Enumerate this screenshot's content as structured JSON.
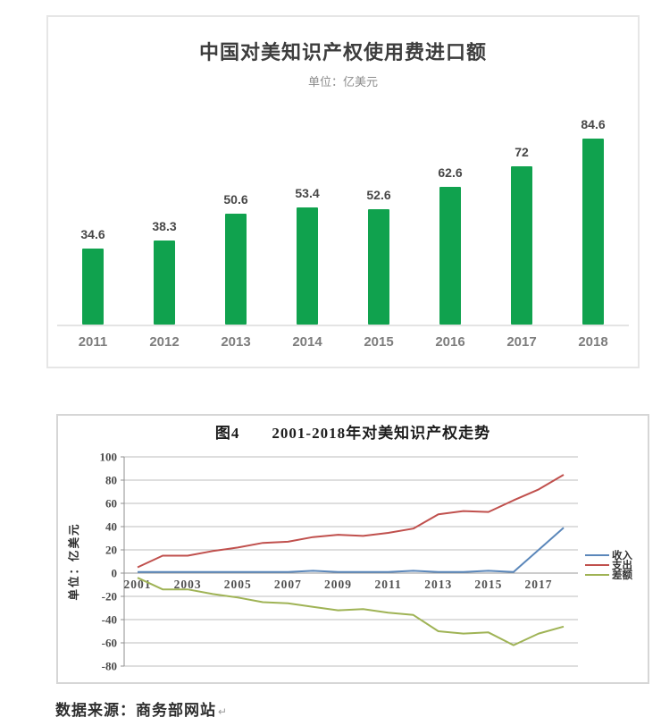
{
  "chart_data": [
    {
      "type": "bar",
      "title": "中国对美知识产权使用费进口额",
      "subtitle": "单位：亿美元",
      "categories": [
        "2011",
        "2012",
        "2013",
        "2014",
        "2015",
        "2016",
        "2017",
        "2018"
      ],
      "values": [
        34.6,
        38.3,
        50.6,
        53.4,
        52.6,
        62.6,
        72,
        84.6
      ],
      "value_labels": [
        "34.6",
        "38.3",
        "50.6",
        "53.4",
        "52.6",
        "62.6",
        "72",
        "84.6"
      ],
      "bar_color": "#10a24e",
      "ylim": [
        0,
        100
      ],
      "grid": false,
      "legend": false
    },
    {
      "type": "line",
      "title": "图4　　2001-2018年对美知识产权走势",
      "ylabel": "单位：亿美元",
      "x": [
        2001,
        2002,
        2003,
        2004,
        2005,
        2006,
        2007,
        2008,
        2009,
        2010,
        2011,
        2012,
        2013,
        2014,
        2015,
        2016,
        2017,
        2018
      ],
      "x_tick_labels": [
        "2001",
        "2003",
        "2005",
        "2007",
        "2009",
        "2011",
        "2013",
        "2015",
        "2017"
      ],
      "y_ticks": [
        100,
        80,
        60,
        40,
        20,
        0,
        -20,
        -40,
        -60,
        -80
      ],
      "ylim": [
        -80,
        100
      ],
      "grid": true,
      "legend_position": "right",
      "series": [
        {
          "name": "收入",
          "color": "#5b87ba",
          "values": [
            1,
            1,
            1,
            1,
            1,
            1,
            1,
            2,
            1,
            1,
            1,
            2,
            1,
            1,
            2,
            1,
            20,
            39
          ]
        },
        {
          "name": "支出",
          "color": "#c0504d",
          "values": [
            5,
            15,
            15,
            19,
            22,
            26,
            27,
            31,
            33,
            32,
            34.6,
            38.3,
            50.6,
            53.4,
            52.6,
            62.6,
            72,
            84.6
          ]
        },
        {
          "name": "差额",
          "color": "#9fb355",
          "values": [
            -4,
            -14,
            -14,
            -18,
            -21,
            -25,
            -26,
            -29,
            -32,
            -31,
            -34,
            -36,
            -50,
            -52,
            -51,
            -62,
            -52,
            -46
          ]
        }
      ]
    }
  ],
  "footer": {
    "source_text": "数据来源：商务部网站",
    "return_mark": "↵"
  },
  "colors": {
    "bar_green": "#10a24e",
    "grid_gray": "#bdbdbd",
    "axis_gray": "#8f8f8f"
  }
}
